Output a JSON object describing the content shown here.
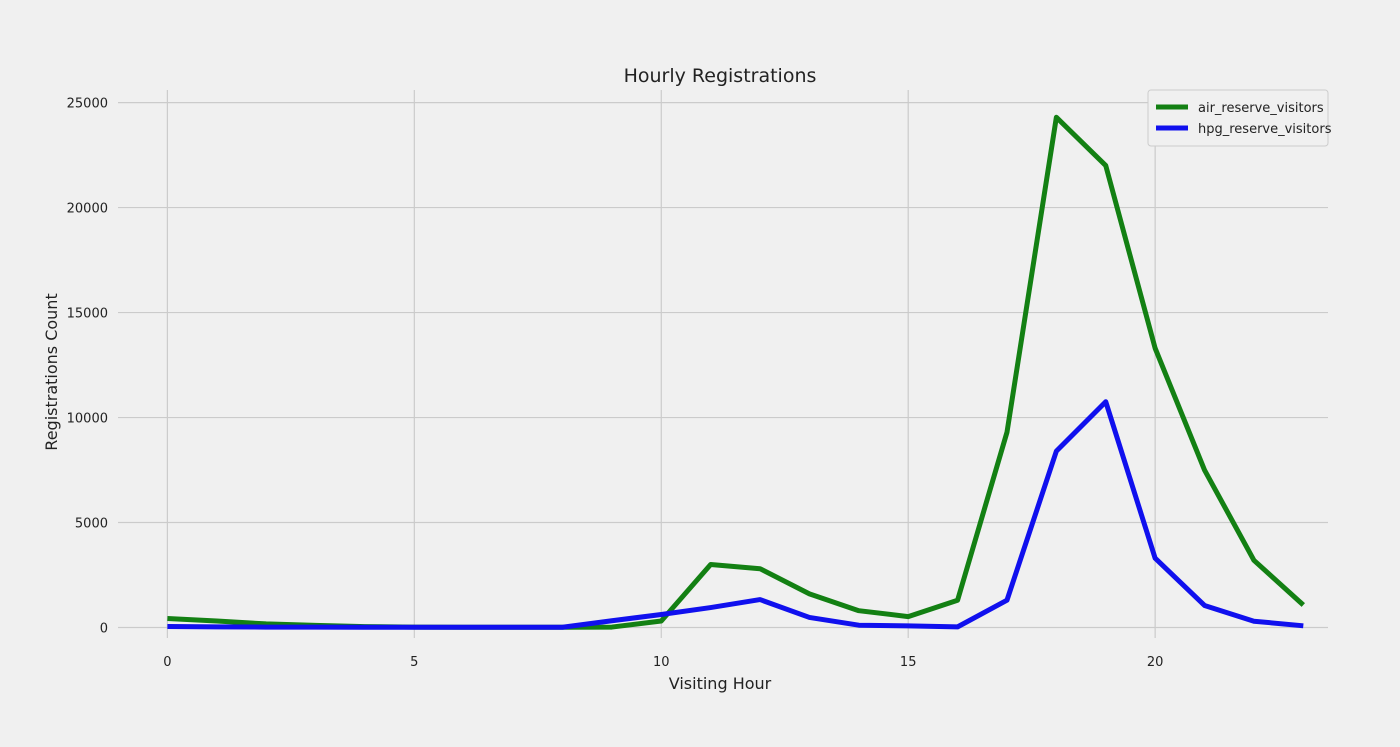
{
  "chart_data": {
    "type": "line",
    "title": "Hourly Registrations",
    "xlabel": "Visiting Hour",
    "ylabel": "Registrations Count",
    "x": [
      0,
      1,
      2,
      3,
      4,
      5,
      6,
      7,
      8,
      9,
      10,
      11,
      12,
      13,
      14,
      15,
      16,
      17,
      18,
      19,
      20,
      21,
      22,
      23
    ],
    "xlim": [
      -1,
      23.5
    ],
    "ylim": [
      -500,
      25600
    ],
    "x_ticks": [
      0,
      5,
      10,
      15,
      20
    ],
    "y_ticks": [
      0,
      5000,
      10000,
      15000,
      20000,
      25000
    ],
    "x_tick_labels": [
      "0",
      "5",
      "10",
      "15",
      "20"
    ],
    "y_tick_labels": [
      "0",
      "5000",
      "10000",
      "15000",
      "20000",
      "25000"
    ],
    "grid": true,
    "legend_position": "top-right",
    "series": [
      {
        "name": "air_reserve_visitors",
        "color": "#138013",
        "values": [
          430,
          310,
          170,
          100,
          40,
          20,
          10,
          10,
          10,
          20,
          310,
          3000,
          2800,
          1600,
          800,
          520,
          1300,
          9300,
          24300,
          22000,
          13300,
          7500,
          3200,
          1070
        ]
      },
      {
        "name": "hpg_reserve_visitors",
        "color": "#1010ee",
        "values": [
          50,
          30,
          20,
          20,
          10,
          10,
          10,
          10,
          10,
          320,
          620,
          950,
          1330,
          480,
          110,
          80,
          30,
          1300,
          8400,
          10750,
          3300,
          1050,
          300,
          80
        ]
      }
    ]
  },
  "colors": {
    "background": "#f0f0f0",
    "grid": "#cbcbcb",
    "text": "#222222"
  }
}
